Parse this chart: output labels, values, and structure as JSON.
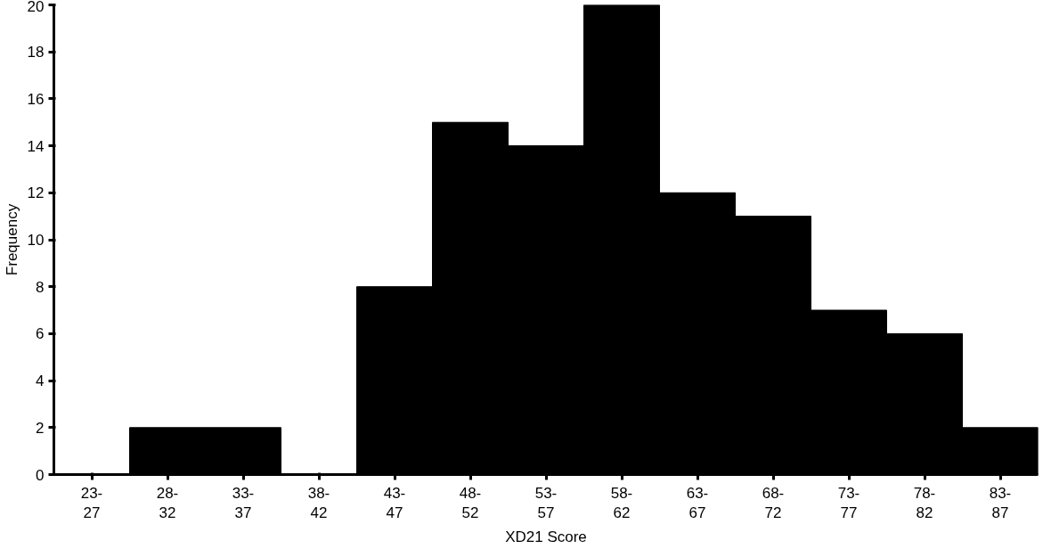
{
  "chart_data": {
    "type": "bar",
    "xlabel": "XD21 Score",
    "ylabel": "Frequency",
    "categories": [
      "23-\n27",
      "28-\n32",
      "33-\n37",
      "38-\n42",
      "43-\n47",
      "48-\n52",
      "53-\n57",
      "58-\n62",
      "63-\n67",
      "68-\n72",
      "73-\n77",
      "78-\n82",
      "83-\n87"
    ],
    "values": [
      0,
      2,
      2,
      0,
      8,
      15,
      14,
      20,
      12,
      11,
      7,
      6,
      2
    ],
    "color": "#000000",
    "ylim": [
      0,
      20
    ],
    "yticks": [
      0,
      2,
      4,
      6,
      8,
      10,
      12,
      14,
      16,
      18,
      20
    ],
    "grid": false
  }
}
